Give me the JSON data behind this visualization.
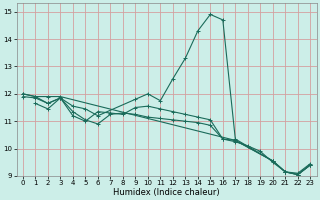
{
  "xlabel": "Humidex (Indice chaleur)",
  "background_color": "#cceee8",
  "grid_color": "#d4a0a0",
  "line_color": "#1a6b5a",
  "xlim": [
    -0.5,
    23.5
  ],
  "ylim": [
    9,
    15.3
  ],
  "yticks": [
    9,
    10,
    11,
    12,
    13,
    14,
    15
  ],
  "xticks": [
    0,
    1,
    2,
    3,
    4,
    5,
    6,
    7,
    8,
    9,
    10,
    11,
    12,
    13,
    14,
    15,
    16,
    17,
    18,
    19,
    20,
    21,
    22,
    23
  ],
  "lines": [
    {
      "x": [
        0,
        1,
        2,
        3,
        4,
        5,
        6,
        9,
        10,
        11,
        12,
        13,
        14,
        15,
        16,
        17,
        20,
        21,
        22,
        23
      ],
      "y": [
        12.0,
        11.9,
        11.65,
        11.85,
        11.55,
        11.45,
        11.2,
        11.8,
        12.0,
        11.75,
        12.55,
        13.3,
        14.3,
        14.9,
        14.7,
        10.35,
        9.55,
        9.15,
        9.05,
        9.4
      ]
    },
    {
      "x": [
        0,
        1,
        2,
        3,
        17,
        20,
        21,
        22,
        23
      ],
      "y": [
        12.0,
        11.9,
        11.9,
        11.9,
        10.3,
        9.55,
        9.15,
        9.05,
        9.4
      ]
    },
    {
      "x": [
        0,
        1,
        2,
        3,
        4,
        5,
        6,
        7,
        8,
        9,
        10,
        11,
        12,
        13,
        14,
        15,
        16,
        17,
        18,
        19,
        20,
        21,
        22,
        23
      ],
      "y": [
        11.9,
        11.85,
        11.65,
        11.85,
        11.35,
        11.05,
        10.9,
        11.25,
        11.3,
        11.25,
        11.15,
        11.1,
        11.05,
        11.0,
        10.95,
        10.85,
        10.35,
        10.25,
        10.1,
        9.9,
        9.5,
        9.15,
        9.1,
        9.45
      ]
    },
    {
      "x": [
        1,
        2,
        3,
        4,
        5,
        6,
        7,
        8,
        9,
        10,
        11,
        12,
        13,
        14,
        15,
        16,
        17,
        20,
        21,
        22,
        23
      ],
      "y": [
        11.65,
        11.45,
        11.85,
        11.2,
        11.0,
        11.35,
        11.3,
        11.25,
        11.5,
        11.55,
        11.45,
        11.35,
        11.25,
        11.15,
        11.05,
        10.35,
        10.3,
        9.55,
        9.15,
        9.05,
        9.4
      ]
    }
  ]
}
